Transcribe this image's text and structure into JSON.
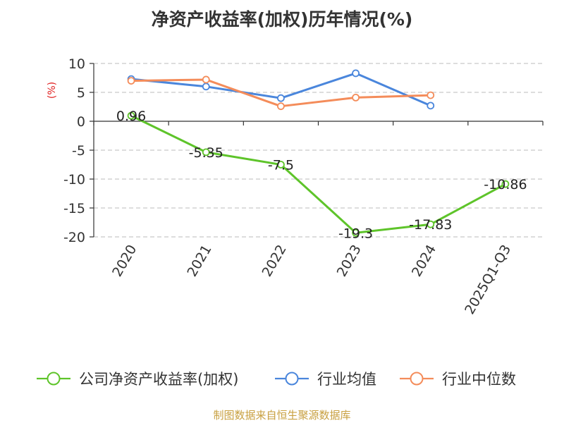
{
  "chart_data": {
    "type": "line",
    "title": "净资产收益率(加权)历年情况(%)",
    "ylabel": "(%)",
    "xlabel": "",
    "categories": [
      "2020",
      "2021",
      "2022",
      "2023",
      "2024",
      "2025Q1-Q3"
    ],
    "ylim": [
      -20,
      10
    ],
    "yticks": [
      10,
      5,
      0,
      -5,
      -10,
      -15,
      -20
    ],
    "grid": true,
    "legend_position": "bottom",
    "series": [
      {
        "name": "公司净资产收益率(加权)",
        "color": "#5ec42a",
        "values": [
          0.96,
          -5.35,
          -7.5,
          -19.3,
          -17.83,
          -10.86
        ],
        "labels": [
          "0.96",
          "-5.35",
          "-7.5",
          "-19.3",
          "-17.83",
          "-10.86"
        ]
      },
      {
        "name": "行业均值",
        "color": "#4a86dc",
        "values": [
          7.3,
          6.0,
          4.0,
          8.3,
          2.7,
          null
        ]
      },
      {
        "name": "行业中位数",
        "color": "#f48c5a",
        "values": [
          7.0,
          7.2,
          2.6,
          4.1,
          4.5,
          null
        ]
      }
    ]
  },
  "source_note": "制图数据来自恒生聚源数据库"
}
